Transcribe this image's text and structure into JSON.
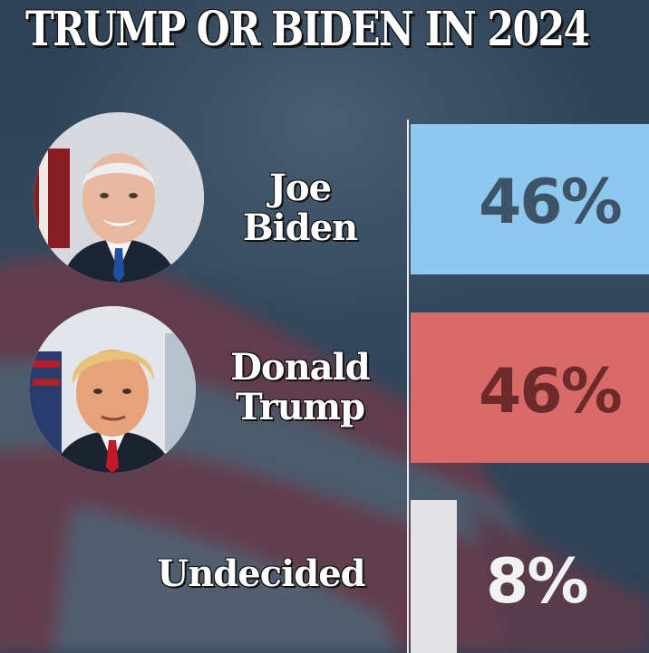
{
  "title": "TRUMP OR BIDEN IN 2024",
  "colors": {
    "biden_bar": "#8fc8ee",
    "trump_bar": "#d96a6a",
    "undecided_bar": "#e4e4e6",
    "biden_label": "#3d5468",
    "trump_label": "#6e2a2a",
    "undecided_label": "#f2f2f2"
  },
  "chart_data": {
    "type": "bar",
    "orientation": "horizontal",
    "title": "TRUMP OR BIDEN IN 2024",
    "categories": [
      "Joe Biden",
      "Donald Trump",
      "Undecided"
    ],
    "values": [
      46,
      46,
      8
    ],
    "value_labels": [
      "46%",
      "46%",
      "8%"
    ],
    "unit": "%",
    "grid": false,
    "legend": "none"
  },
  "rows": [
    {
      "name_line1": "Joe",
      "name_line2": "Biden",
      "value_label": "46%",
      "avatar_icon": "joe-biden-portrait"
    },
    {
      "name_line1": "Donald",
      "name_line2": "Trump",
      "value_label": "46%",
      "avatar_icon": "donald-trump-portrait"
    },
    {
      "name_line1": "Undecided",
      "name_line2": "",
      "value_label": "8%"
    }
  ]
}
